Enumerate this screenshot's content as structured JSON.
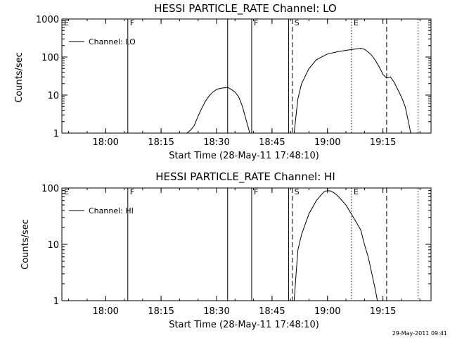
{
  "footer_timestamp": "29-May-2011 09:41",
  "chart_data": [
    {
      "type": "line",
      "title": "HESSI PARTICLE_RATE Channel: LO",
      "xlabel": "Start Time (28-May-11 17:48:10)",
      "ylabel": "Counts/sec",
      "y_scale": "log",
      "xlim": [
        "17:48:10",
        "19:28:00"
      ],
      "ylim": [
        1,
        1000
      ],
      "x_ticks": [
        "18:00",
        "18:15",
        "18:30",
        "18:45",
        "19:00",
        "19:15"
      ],
      "y_ticks": [
        "1",
        "10",
        "100",
        "1000"
      ],
      "legend": "top-left",
      "series": [
        {
          "name": "Channel: LO",
          "segments": [
            [
              [
                "18:22",
                "1"
              ],
              [
                "18:23",
                "1.2"
              ],
              [
                "18:24",
                "1.6"
              ],
              [
                "18:25",
                "2.8"
              ],
              [
                "18:26",
                "4.5"
              ],
              [
                "18:27",
                "7"
              ],
              [
                "18:28",
                "9.5"
              ],
              [
                "18:29",
                "12"
              ],
              [
                "18:30",
                "14"
              ],
              [
                "18:31",
                "15"
              ],
              [
                "18:32",
                "15.5"
              ],
              [
                "18:33",
                "16"
              ],
              [
                "18:34",
                "14"
              ],
              [
                "18:35",
                "12"
              ],
              [
                "18:36",
                "9"
              ],
              [
                "18:37",
                "5"
              ],
              [
                "18:38",
                "2.2"
              ],
              [
                "18:39",
                "1"
              ]
            ],
            [
              [
                "18:51",
                "1"
              ],
              [
                "18:51.5",
                "3"
              ],
              [
                "18:52",
                "8"
              ],
              [
                "18:53",
                "20"
              ],
              [
                "18:55",
                "50"
              ],
              [
                "18:57",
                "85"
              ],
              [
                "19:00",
                "120"
              ],
              [
                "19:03",
                "140"
              ],
              [
                "19:05",
                "150"
              ],
              [
                "19:07",
                "160"
              ],
              [
                "19:09",
                "170"
              ],
              [
                "19:10",
                "160"
              ],
              [
                "19:11",
                "135"
              ],
              [
                "19:12",
                "110"
              ],
              [
                "19:13",
                "80"
              ],
              [
                "19:14",
                "55"
              ],
              [
                "19:15",
                "35"
              ],
              [
                "19:16",
                "28"
              ],
              [
                "19:17",
                "30"
              ],
              [
                "19:18",
                "22"
              ],
              [
                "19:19",
                "14"
              ],
              [
                "19:20",
                "9"
              ],
              [
                "19:21",
                "5"
              ],
              [
                "19:22",
                "1.8"
              ],
              [
                "19:22.5",
                "1"
              ]
            ]
          ]
        }
      ],
      "event_lines": [
        {
          "time": "17:48:10",
          "label": "E",
          "style": "solid"
        },
        {
          "time": "18:06",
          "label": "F",
          "style": "solid"
        },
        {
          "time": "18:33",
          "label": "",
          "style": "solid"
        },
        {
          "time": "18:39.5",
          "label": "F",
          "style": "solid"
        },
        {
          "time": "18:49.5",
          "label": "",
          "style": "solid"
        },
        {
          "time": "18:50.5",
          "label": "S",
          "style": "dashed"
        },
        {
          "time": "19:06.5",
          "label": "E",
          "style": "dotted"
        },
        {
          "time": "19:16",
          "label": "",
          "style": "dashed"
        },
        {
          "time": "19:24.5",
          "label": "",
          "style": "dotted"
        }
      ]
    },
    {
      "type": "line",
      "title": "HESSI PARTICLE_RATE Channel: HI",
      "xlabel": "Start Time (28-May-11 17:48:10)",
      "ylabel": "Counts/sec",
      "y_scale": "log",
      "xlim": [
        "17:48:10",
        "19:28:00"
      ],
      "ylim": [
        1,
        100
      ],
      "x_ticks": [
        "18:00",
        "18:15",
        "18:30",
        "18:45",
        "19:00",
        "19:15"
      ],
      "y_ticks": [
        "1",
        "10",
        "100"
      ],
      "legend": "top-left",
      "series": [
        {
          "name": "Channel: HI",
          "segments": [
            [
              [
                "18:51",
                "1"
              ],
              [
                "18:51.5",
                "3"
              ],
              [
                "18:52",
                "8"
              ],
              [
                "18:53",
                "15"
              ],
              [
                "18:55",
                "35"
              ],
              [
                "18:57",
                "60"
              ],
              [
                "18:59",
                "85"
              ],
              [
                "19:00",
                "90"
              ],
              [
                "19:01",
                "88"
              ],
              [
                "19:02",
                "80"
              ],
              [
                "19:03",
                "70"
              ],
              [
                "19:05",
                "50"
              ],
              [
                "19:07",
                "30"
              ],
              [
                "19:09",
                "18"
              ],
              [
                "19:10",
                "10"
              ],
              [
                "19:11",
                "6"
              ],
              [
                "19:12",
                "3"
              ],
              [
                "19:13",
                "1.5"
              ],
              [
                "19:13.5",
                "1"
              ]
            ]
          ]
        }
      ],
      "event_lines": [
        {
          "time": "17:48:10",
          "label": "E",
          "style": "solid"
        },
        {
          "time": "18:06",
          "label": "F",
          "style": "solid"
        },
        {
          "time": "18:33",
          "label": "",
          "style": "solid"
        },
        {
          "time": "18:39.5",
          "label": "F",
          "style": "solid"
        },
        {
          "time": "18:49.5",
          "label": "",
          "style": "solid"
        },
        {
          "time": "18:50.5",
          "label": "S",
          "style": "dashed"
        },
        {
          "time": "19:06.5",
          "label": "E",
          "style": "dotted"
        },
        {
          "time": "19:16",
          "label": "",
          "style": "dashed"
        },
        {
          "time": "19:24.5",
          "label": "",
          "style": "dotted"
        }
      ]
    }
  ]
}
